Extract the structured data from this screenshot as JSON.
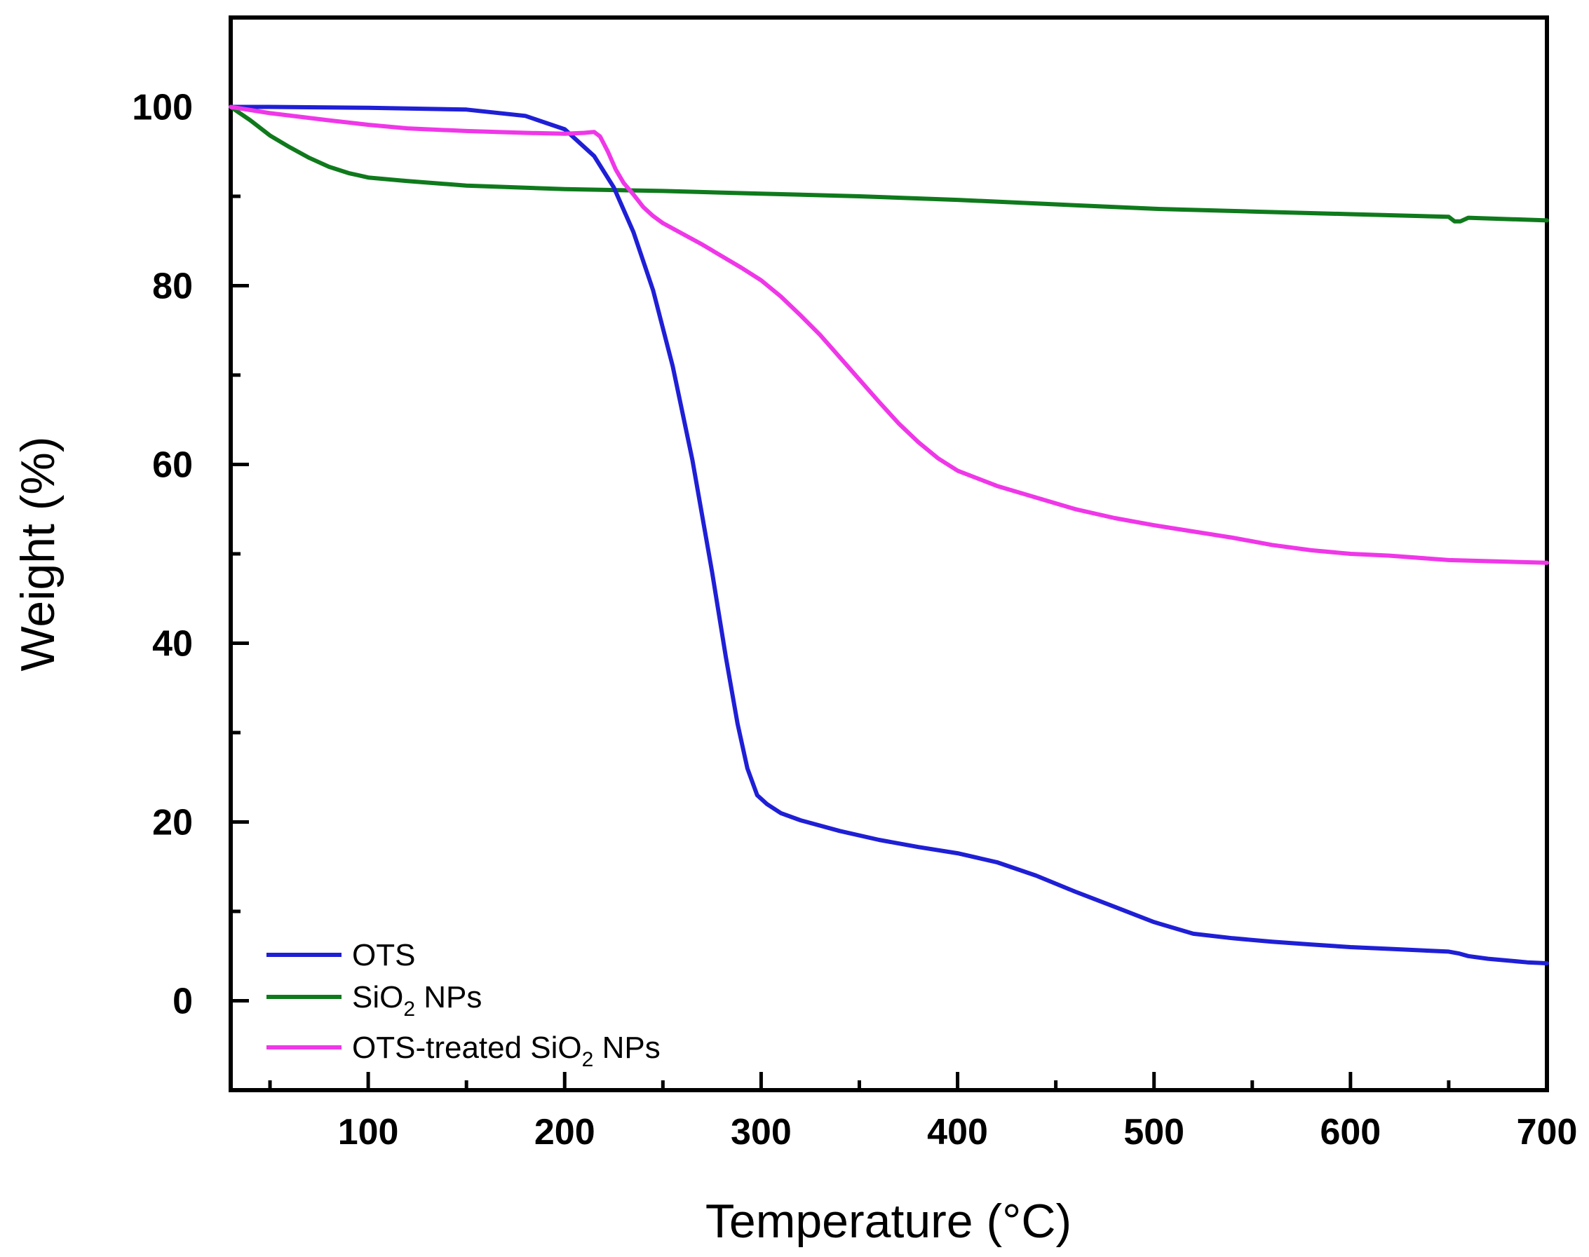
{
  "chart_data": {
    "type": "line",
    "title": "",
    "xlabel": "Temperature (°C)",
    "ylabel": "Weight (%)",
    "xlim": [
      30,
      700
    ],
    "ylim": [
      -10,
      110
    ],
    "xticks": [
      100,
      200,
      300,
      400,
      500,
      600,
      700
    ],
    "yticks": [
      0,
      20,
      40,
      60,
      80,
      100
    ],
    "x_minor_ticks": [
      50,
      150,
      250,
      350,
      450,
      550,
      650
    ],
    "y_minor_ticks": [
      -10,
      10,
      30,
      50,
      70,
      90,
      110
    ],
    "grid": false,
    "legend_position": "bottom-left",
    "series": [
      {
        "name": "OTS",
        "legend_label": {
          "base": "OTS"
        },
        "color": "#1f1fd6",
        "x": [
          30,
          50,
          100,
          150,
          180,
          200,
          215,
          225,
          235,
          245,
          255,
          265,
          275,
          282,
          288,
          293,
          298,
          303,
          310,
          320,
          340,
          360,
          380,
          400,
          420,
          440,
          460,
          480,
          500,
          520,
          540,
          560,
          580,
          600,
          620,
          640,
          650,
          655,
          660,
          670,
          680,
          690,
          700
        ],
        "y": [
          100,
          100,
          99.9,
          99.7,
          99.0,
          97.5,
          94.5,
          91.0,
          86.0,
          79.5,
          71.0,
          60.5,
          48.0,
          38.5,
          31.0,
          26.0,
          23.0,
          22.0,
          21.0,
          20.2,
          19.0,
          18.0,
          17.2,
          16.5,
          15.5,
          14.0,
          12.2,
          10.5,
          8.8,
          7.5,
          7.0,
          6.6,
          6.3,
          6.0,
          5.8,
          5.6,
          5.5,
          5.3,
          5.0,
          4.7,
          4.5,
          4.3,
          4.2
        ]
      },
      {
        "name": "SiO2 NPs",
        "legend_label": {
          "base": "SiO",
          "sub": "2",
          "rest": " NPs"
        },
        "color": "#0f7a1c",
        "x": [
          30,
          40,
          50,
          60,
          70,
          80,
          90,
          100,
          120,
          150,
          200,
          250,
          300,
          350,
          400,
          450,
          500,
          550,
          600,
          650,
          653,
          656,
          660,
          700
        ],
        "y": [
          100,
          98.5,
          96.8,
          95.5,
          94.3,
          93.3,
          92.6,
          92.1,
          91.7,
          91.2,
          90.8,
          90.6,
          90.3,
          90.0,
          89.6,
          89.1,
          88.6,
          88.3,
          88.0,
          87.7,
          87.2,
          87.2,
          87.6,
          87.3
        ]
      },
      {
        "name": "OTS-treated SiO2 NPs",
        "legend_label": {
          "base": "OTS-treated SiO",
          "sub": "2",
          "rest": " NPs"
        },
        "color": "#ef37e8",
        "x": [
          30,
          50,
          80,
          100,
          120,
          150,
          180,
          200,
          210,
          215,
          218,
          222,
          226,
          230,
          235,
          240,
          245,
          250,
          260,
          270,
          280,
          290,
          300,
          310,
          320,
          330,
          340,
          350,
          360,
          370,
          380,
          390,
          400,
          420,
          440,
          460,
          480,
          500,
          520,
          540,
          560,
          580,
          600,
          620,
          650,
          700
        ],
        "y": [
          100,
          99.3,
          98.5,
          98.0,
          97.6,
          97.3,
          97.1,
          97.0,
          97.1,
          97.2,
          96.7,
          95.0,
          93.0,
          91.5,
          90.2,
          88.8,
          87.8,
          87.0,
          85.8,
          84.6,
          83.3,
          82.0,
          80.6,
          78.8,
          76.7,
          74.5,
          72.0,
          69.5,
          67.0,
          64.6,
          62.5,
          60.7,
          59.3,
          57.6,
          56.3,
          55.0,
          54.0,
          53.2,
          52.5,
          51.8,
          51.0,
          50.4,
          50.0,
          49.8,
          49.3,
          49.0
        ]
      }
    ]
  }
}
